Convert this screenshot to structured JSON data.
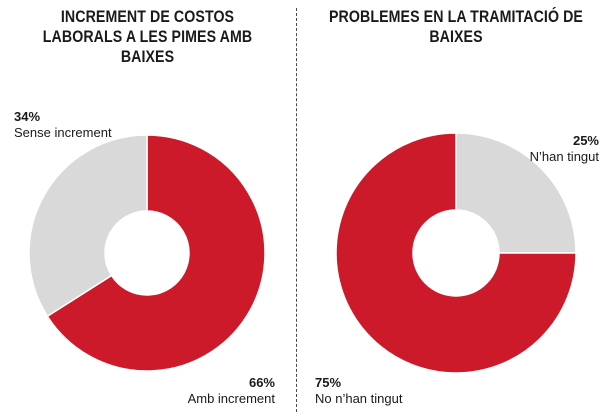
{
  "chart_data": [
    {
      "type": "pie",
      "variant": "donut",
      "title": "INCREMENT DE COSTOS LABORALS A LES PIMES AMB BAIXES",
      "slices": [
        {
          "label": "Amb increment",
          "value": 66,
          "value_label": "66%",
          "color": "#cc1a2a"
        },
        {
          "label": "Sense increment",
          "value": 34,
          "value_label": "34%",
          "color": "#d9d9d9"
        }
      ]
    },
    {
      "type": "pie",
      "variant": "donut",
      "title": "PROBLEMES EN LA TRAMITACIÓ DE BAIXES",
      "slices": [
        {
          "label": "N’han tingut",
          "value": 25,
          "value_label": "25%",
          "color": "#d9d9d9"
        },
        {
          "label": "No n’han tingut",
          "value": 75,
          "value_label": "75%",
          "color": "#cc1a2a"
        }
      ]
    }
  ]
}
